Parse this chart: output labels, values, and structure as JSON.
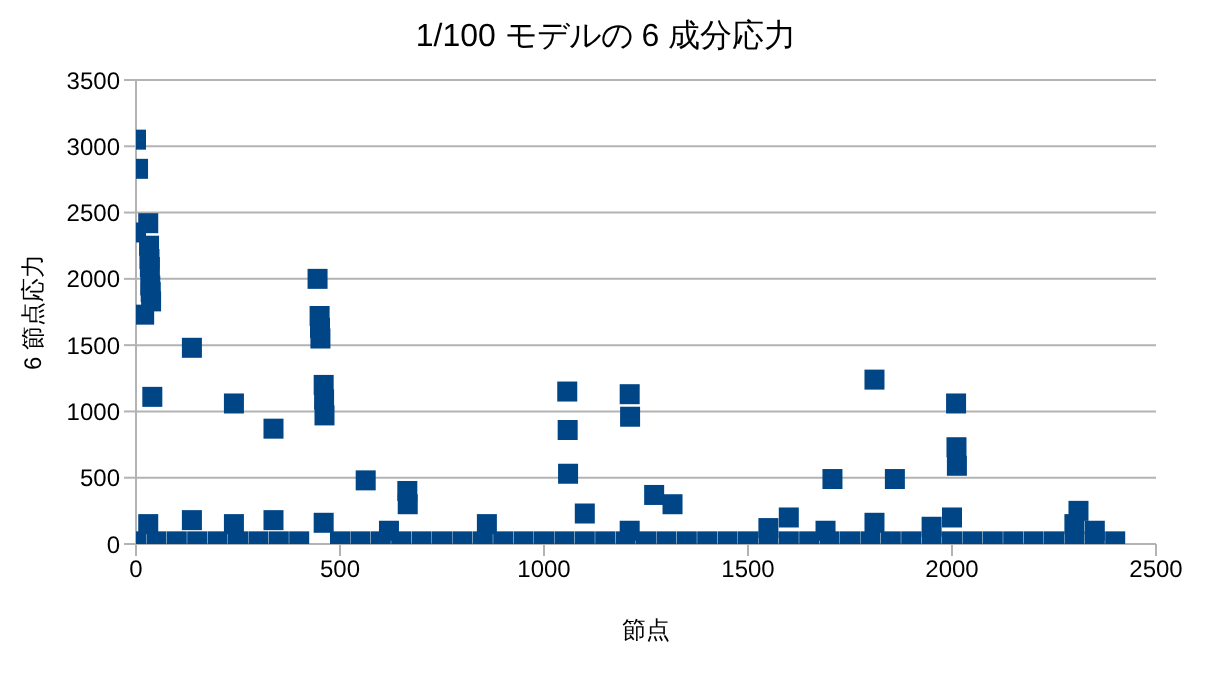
{
  "chart_data": {
    "type": "scatter",
    "title": "1/100 モデルの 6 成分応力",
    "xlabel": "節点",
    "ylabel": "6 節点応力",
    "xlim": [
      0,
      2500
    ],
    "xticks": [
      0,
      500,
      1000,
      1500,
      2000,
      2500
    ],
    "ylim": [
      0,
      3500
    ],
    "yticks": [
      0,
      500,
      1000,
      1500,
      2000,
      2500,
      3000,
      3500
    ],
    "grid": "y",
    "legend": false,
    "marker": "square",
    "series": [
      {
        "color": "#004586",
        "x": [
          0,
          5,
          0,
          30,
          32,
          33,
          34,
          35,
          36,
          37,
          20,
          40,
          137,
          240,
          337,
          445,
          450,
          451,
          452,
          460,
          461,
          462,
          563,
          665,
          666,
          1057,
          1058,
          1059,
          1210,
          1211,
          1270,
          1315,
          1707,
          1810,
          1860,
          2010,
          2011,
          2012,
          30,
          137,
          240,
          337,
          460,
          620,
          860,
          1100,
          1210,
          1600,
          1690,
          1810,
          2000,
          2310,
          2300,
          2350,
          1950,
          1550,
          0,
          50,
          100,
          150,
          200,
          250,
          300,
          350,
          400,
          500,
          550,
          600,
          650,
          700,
          750,
          800,
          850,
          900,
          950,
          1000,
          1050,
          1100,
          1150,
          1200,
          1250,
          1300,
          1350,
          1400,
          1450,
          1500,
          1550,
          1600,
          1650,
          1700,
          1750,
          1800,
          1850,
          1900,
          1950,
          2000,
          2050,
          2100,
          2150,
          2200,
          2250,
          2300,
          2350,
          2400
        ],
        "values": [
          3050,
          2830,
          2350,
          2420,
          2250,
          2150,
          2090,
          1950,
          1900,
          1830,
          1730,
          1110,
          1480,
          1060,
          870,
          2000,
          1720,
          1630,
          1550,
          1200,
          1090,
          970,
          480,
          400,
          300,
          1150,
          860,
          530,
          1130,
          960,
          370,
          300,
          490,
          1240,
          490,
          1060,
          730,
          590,
          150,
          180,
          150,
          180,
          160,
          100,
          150,
          230,
          100,
          200,
          100,
          160,
          200,
          250,
          150,
          100,
          130,
          120,
          20,
          20,
          20,
          20,
          20,
          20,
          20,
          20,
          20,
          20,
          20,
          20,
          20,
          20,
          20,
          20,
          20,
          20,
          20,
          20,
          20,
          20,
          20,
          20,
          20,
          20,
          20,
          20,
          20,
          20,
          20,
          20,
          20,
          20,
          20,
          20,
          20,
          20,
          20,
          20,
          20,
          20,
          20,
          20,
          20,
          20,
          20,
          20
        ]
      }
    ]
  }
}
